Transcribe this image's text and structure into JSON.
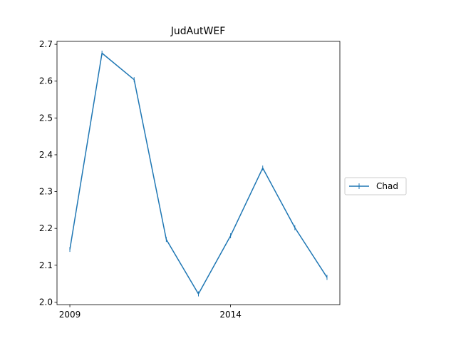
{
  "chart_data": {
    "type": "line",
    "title": "JudAutWEF",
    "xlabel": "",
    "ylabel": "",
    "x": [
      2009,
      2010,
      2011,
      2012,
      2013,
      2014,
      2015,
      2016,
      2017
    ],
    "xlim": [
      2008.6,
      2017.4
    ],
    "ylim": [
      1.993,
      2.708
    ],
    "xticks": [
      2009,
      2014
    ],
    "yticks": [
      2.0,
      2.1,
      2.2,
      2.3,
      2.4,
      2.5,
      2.6,
      2.7
    ],
    "ytick_labels": [
      "2.0",
      "2.1",
      "2.2",
      "2.3",
      "2.4",
      "2.5",
      "2.6",
      "2.7"
    ],
    "grid": false,
    "legend_position": "right",
    "series": [
      {
        "name": "Chad",
        "color": "#1f77b4",
        "marker": "|",
        "values": [
          2.143,
          2.676,
          2.604,
          2.17,
          2.022,
          2.18,
          2.364,
          2.202,
          2.067
        ]
      }
    ]
  }
}
